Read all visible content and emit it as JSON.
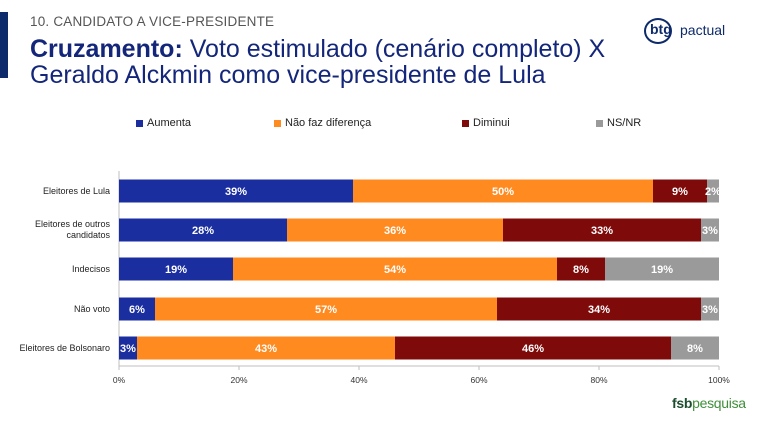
{
  "header": {
    "section": "10. CANDIDATO A VICE-PRESIDENTE",
    "title_bold": "Cruzamento:",
    "title_rest": " Voto estimulado (cenário completo) X Geraldo Alckmin como vice-presidente de Lula"
  },
  "logo": {
    "main": "btg",
    "sub": "pactual"
  },
  "footer_logo": {
    "part1": "fsb",
    "part2": "pesquisa"
  },
  "colors": {
    "accent": "#0d2a6b",
    "Aumenta": "#1a2ea0",
    "Nao_faz": "#ff8a1f",
    "Diminui": "#7f0a0a",
    "NSNR": "#9a9a9a"
  },
  "chart_data": {
    "type": "bar",
    "orientation": "horizontal",
    "stacked": true,
    "categories": [
      "Eleitores de Lula",
      "Eleitores de outros candidatos",
      "Indecisos",
      "Não voto",
      "Eleitores de Bolsonaro"
    ],
    "series": [
      {
        "name": "Aumenta",
        "color": "#1a2ea0",
        "values": [
          39,
          28,
          19,
          6,
          3
        ]
      },
      {
        "name": "Não faz diferença",
        "color": "#ff8a1f",
        "values": [
          50,
          36,
          54,
          57,
          43
        ]
      },
      {
        "name": "Diminui",
        "color": "#7f0a0a",
        "values": [
          9,
          33,
          8,
          34,
          46
        ]
      },
      {
        "name": "NS/NR",
        "color": "#9a9a9a",
        "values": [
          2,
          3,
          19,
          3,
          8
        ]
      }
    ],
    "xlim": [
      0,
      100
    ],
    "xticks": [
      "0%",
      "20%",
      "40%",
      "60%",
      "80%",
      "100%"
    ],
    "legend_position": "top",
    "grid": false
  }
}
